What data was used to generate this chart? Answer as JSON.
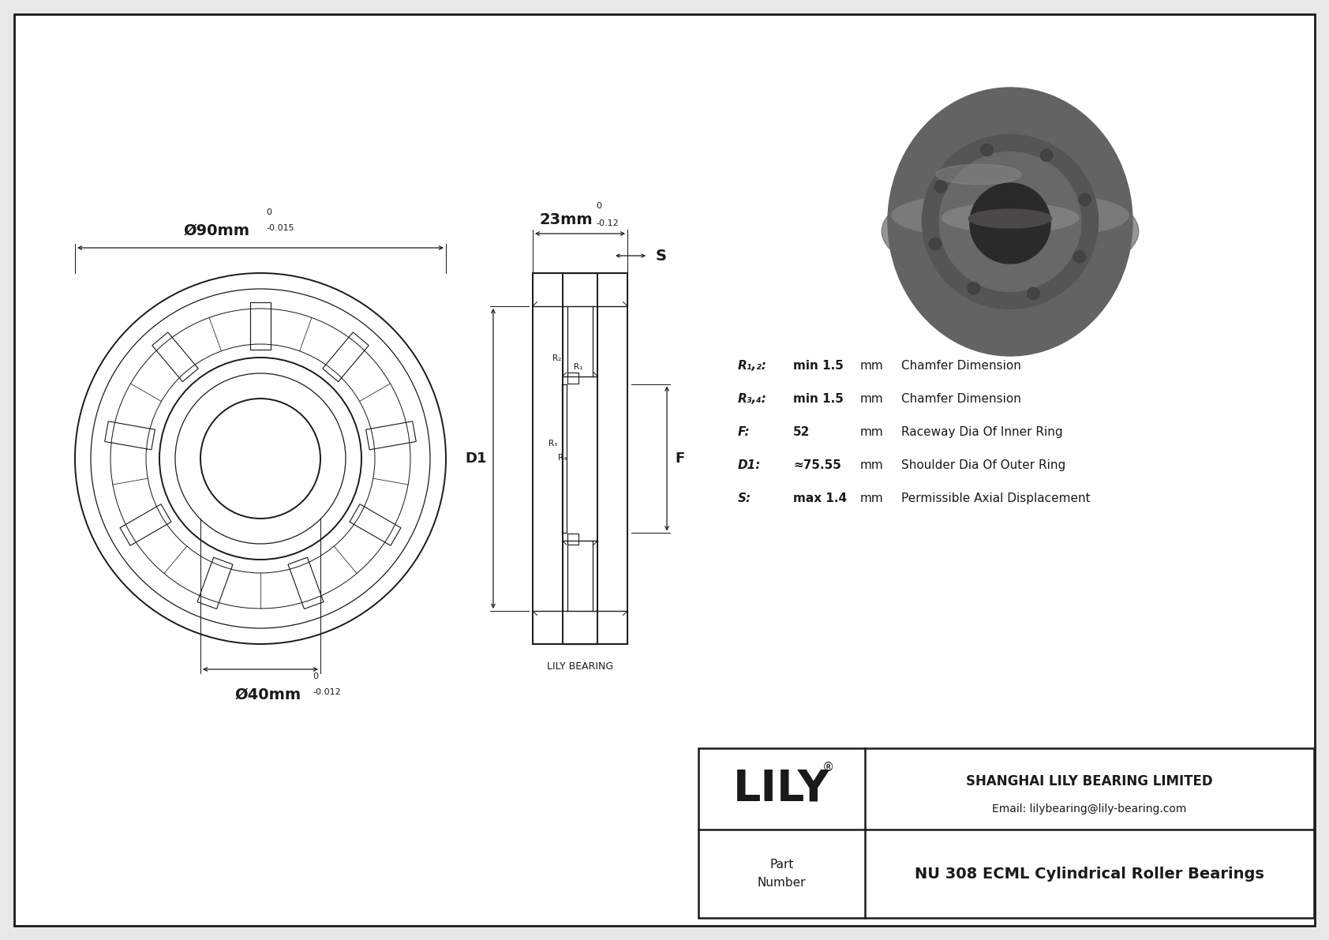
{
  "bg_color": "#e8e8e8",
  "drawing_bg": "#ffffff",
  "line_color": "#1a1a1a",
  "title": "NU 308 ECML Cylindrical Roller Bearings",
  "company": "SHANGHAI LILY BEARING LIMITED",
  "email": "Email: lilybearing@lily-bearing.com",
  "lily_text": "LILY",
  "registered": "®",
  "part_label": "Part\nNumber",
  "dim_outer": "Ø90mm",
  "dim_outer_tol": "-0.015",
  "dim_outer_tol_upper": "0",
  "dim_inner": "Ø40mm",
  "dim_inner_tol": "-0.012",
  "dim_inner_tol_upper": "0",
  "dim_width": "23mm",
  "dim_width_tol": "-0.12",
  "dim_width_tol_upper": "0",
  "label_S": "S",
  "label_D1": "D1",
  "label_F": "F",
  "label_R1": "R₁",
  "label_R2": "R₂",
  "label_R3": "R₃",
  "label_R4": "R₄",
  "spec_rows": [
    [
      "R₁,₂:",
      "min 1.5",
      "mm",
      "Chamfer Dimension"
    ],
    [
      "R₃,₄:",
      "min 1.5",
      "mm",
      "Chamfer Dimension"
    ],
    [
      "F:",
      "52",
      "mm",
      "Raceway Dia Of Inner Ring"
    ],
    [
      "D1:",
      "≈75.55",
      "mm",
      "Shoulder Dia Of Outer Ring"
    ],
    [
      "S:",
      "max 1.4",
      "mm",
      "Permissible Axial Displacement"
    ]
  ],
  "lily_bearing_label": "LILY BEARING"
}
